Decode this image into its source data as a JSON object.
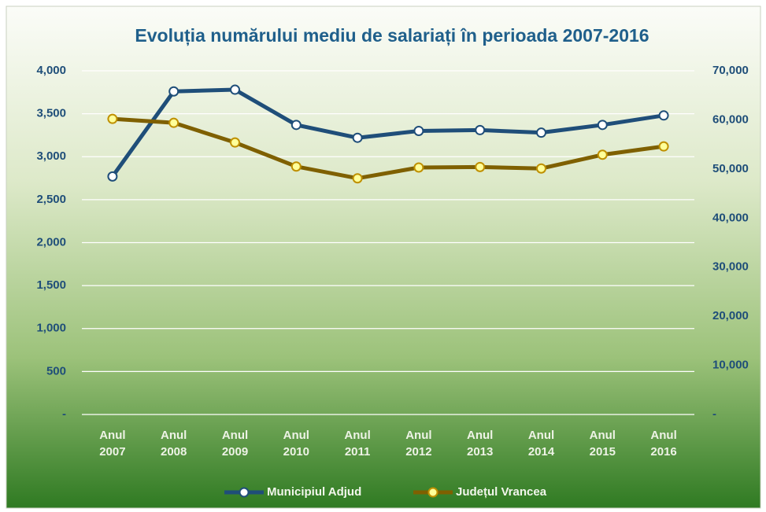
{
  "chart_data": {
    "type": "line",
    "title": "Evoluția numărului mediu de salariați în perioada 2007-2016",
    "categories": [
      "Anul 2007",
      "Anul 2008",
      "Anul 2009",
      "Anul 2010",
      "Anul 2011",
      "Anul 2012",
      "Anul 2013",
      "Anul 2014",
      "Anul 2015",
      "Anul 2016"
    ],
    "series": [
      {
        "name": "Municipiul Adjud",
        "color": "#1f4e79",
        "values": [
          2770,
          3760,
          3780,
          3370,
          3220,
          3300,
          3310,
          3280,
          3370,
          3480
        ]
      },
      {
        "name": "Județul Vrancea",
        "color": "#7f6000",
        "axis": "y2",
        "values": [
          60200,
          59400,
          55400,
          50500,
          48100,
          50300,
          50400,
          50100,
          52900,
          54600
        ]
      }
    ],
    "ylim": [
      0,
      4000
    ],
    "yticks": [
      {
        "value": 0,
        "label": "-"
      },
      500,
      {
        "value": 1000,
        "label": "1,000"
      },
      {
        "value": 1500,
        "label": "1,500"
      },
      {
        "value": 2000,
        "label": "2,000"
      },
      {
        "value": 2500,
        "label": "2,500"
      },
      {
        "value": 3000,
        "label": "3,000"
      },
      {
        "value": 3500,
        "label": "3,500"
      },
      {
        "value": 4000,
        "label": "4,000"
      }
    ],
    "y2lim": [
      0,
      70000
    ],
    "y2ticks": [
      {
        "value": 0,
        "label": "-"
      },
      {
        "value": 10000,
        "label": "10,000"
      },
      {
        "value": 20000,
        "label": "20,000"
      },
      {
        "value": 30000,
        "label": "30,000"
      },
      {
        "value": 40000,
        "label": "40,000"
      },
      {
        "value": 50000,
        "label": "50,000"
      },
      {
        "value": 60000,
        "label": "60,000"
      },
      {
        "value": 70000,
        "label": "70,000"
      }
    ],
    "grid": true
  }
}
